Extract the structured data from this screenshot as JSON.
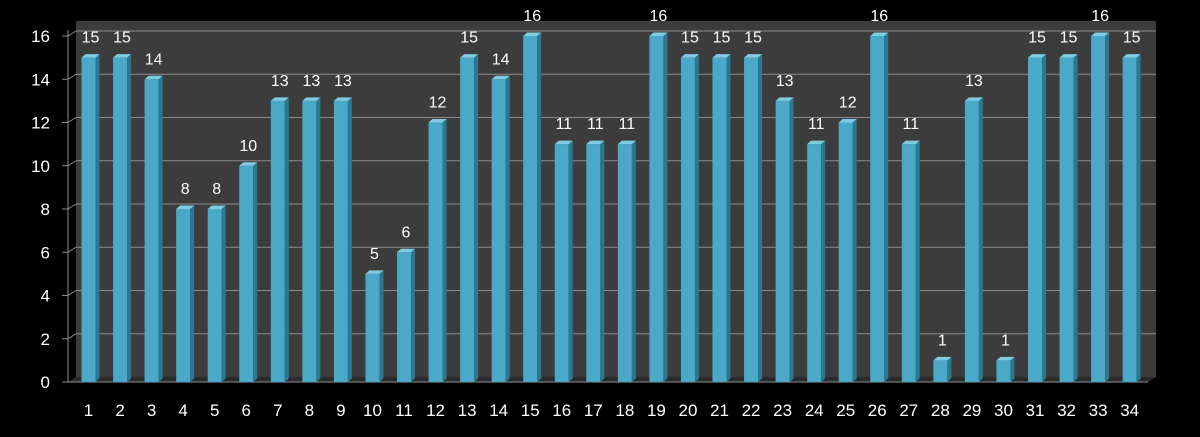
{
  "chart_data": {
    "type": "bar",
    "title": "",
    "xlabel": "",
    "ylabel": "",
    "categories": [
      "1",
      "2",
      "3",
      "4",
      "5",
      "6",
      "7",
      "8",
      "9",
      "10",
      "11",
      "12",
      "13",
      "14",
      "15",
      "16",
      "17",
      "18",
      "19",
      "20",
      "21",
      "22",
      "23",
      "24",
      "25",
      "26",
      "27",
      "28",
      "29",
      "30",
      "31",
      "32",
      "33",
      "34"
    ],
    "values": [
      15,
      15,
      14,
      8,
      8,
      10,
      13,
      13,
      13,
      5,
      6,
      12,
      15,
      14,
      16,
      11,
      11,
      11,
      16,
      15,
      15,
      15,
      13,
      11,
      12,
      16,
      11,
      1,
      13,
      1,
      15,
      15,
      16,
      15
    ],
    "ylim": [
      0,
      16
    ],
    "yticks": [
      "0",
      "2",
      "4",
      "6",
      "8",
      "10",
      "12",
      "14",
      "16"
    ],
    "grid": true,
    "legend": "none",
    "data_labels": true,
    "style_3d": true,
    "colors": {
      "background": "#000000",
      "bar_front": "#4aa8c8",
      "bar_side": "#2b7891",
      "bar_top": "#7fcbe2",
      "plot_wall": "#3c3c3c",
      "floor": "#2a2a2a",
      "gridline": "#8c8c8c",
      "text": "#ffffff"
    }
  }
}
